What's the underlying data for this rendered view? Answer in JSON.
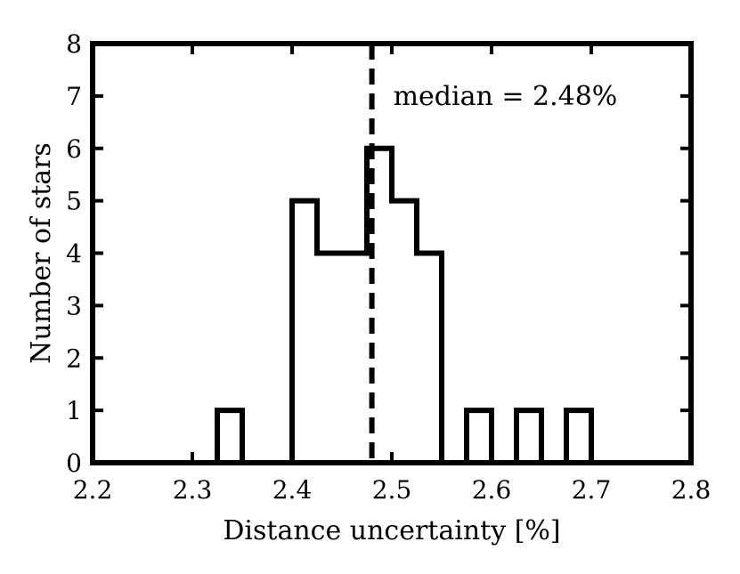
{
  "chart_data": {
    "type": "bar",
    "subtype": "histogram-step",
    "title": "",
    "xlabel": "Distance uncertainty [%]",
    "ylabel": "Number of stars",
    "xlim": [
      2.2,
      2.8
    ],
    "ylim": [
      0,
      8
    ],
    "x_ticks": [
      "2.2",
      "2.3",
      "2.4",
      "2.5",
      "2.6",
      "2.7",
      "2.8"
    ],
    "y_ticks": [
      "0",
      "1",
      "2",
      "3",
      "4",
      "5",
      "6",
      "7",
      "8"
    ],
    "bin_edges": [
      2.2,
      2.225,
      2.25,
      2.275,
      2.3,
      2.325,
      2.35,
      2.375,
      2.4,
      2.425,
      2.45,
      2.475,
      2.5,
      2.525,
      2.55,
      2.575,
      2.6,
      2.625,
      2.65,
      2.675,
      2.7,
      2.725,
      2.75,
      2.775,
      2.8
    ],
    "counts": [
      0,
      0,
      0,
      0,
      0,
      1,
      0,
      0,
      5,
      4,
      4,
      6,
      5,
      4,
      0,
      1,
      0,
      1,
      0,
      1,
      0,
      0,
      0,
      0
    ],
    "median": {
      "value": 2.48,
      "label": "median = 2.48%",
      "style": "dashed"
    },
    "grid": false,
    "legend": "none",
    "colors": {
      "line": "#000000",
      "background": "#ffffff"
    }
  }
}
